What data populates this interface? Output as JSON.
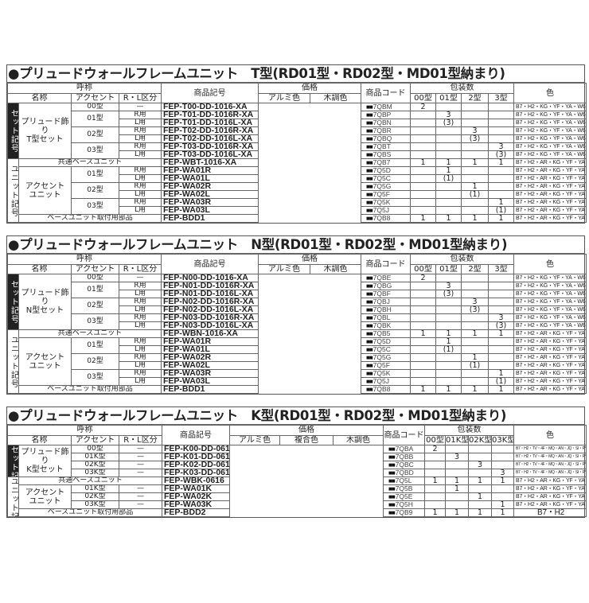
{
  "colors": {
    "text": "#222222",
    "set_label_bg": "#222222",
    "border": "#666666"
  },
  "icons": {
    "title_bullet": "black-circle",
    "code_prefix": "black-squares"
  },
  "tables": {
    "t": {
      "title": "●プリュードウォールフレームユニット　T型(RD01型・RD02型・MD01型納まり)",
      "header": {
        "yobi": "呼称",
        "name": "名称",
        "accent": "アクセント",
        "rl": "R・L区分",
        "product_no": "商品記号",
        "price": "価格",
        "price_cols": [
          "アルミ色",
          "木調色"
        ],
        "code": "商品コード",
        "pack": "包装数",
        "pack_cols": [
          "00型",
          "01型",
          "2型",
          "3型"
        ],
        "color": "色"
      },
      "set_label": "セット記号",
      "unit_label": "ユニット記号",
      "set_name": "プリュード飾り\nT型セット",
      "common_base": "共通ベースユニット",
      "accent_unit": "アクセント\nユニット",
      "base_parts": "ベースユニット取付用部品",
      "code_prefix": "■■",
      "rows": [
        {
          "accent": "00型",
          "rl": "—",
          "product_no": "FEP-T00-DD-1016-XA",
          "code": "7QBM",
          "pack": [
            "2",
            "",
            "",
            ""
          ],
          "color": "B7・H2・KG・YF・YA・W6"
        },
        {
          "accent": "01型",
          "rl": "R用",
          "product_no": "FEP-T01-DD-1016R-XA",
          "code": "7QBP",
          "pack": [
            "",
            "3",
            "",
            ""
          ],
          "color": "B7・H2・KG・YF・YA・W6"
        },
        {
          "rl": "L用",
          "product_no": "FEP-T01-DD-1016L-XA",
          "code": "7QBN",
          "pack": [
            "",
            "(3)",
            "",
            ""
          ],
          "color": "B7・H2・KG・YF・YA・W6"
        },
        {
          "accent": "02型",
          "rl": "R用",
          "product_no": "FEP-T02-DD-1016R-XA",
          "code": "7QBR",
          "pack": [
            "",
            "",
            "3",
            ""
          ],
          "color": "B7・H2・KG・YF・YA・W6"
        },
        {
          "rl": "L用",
          "product_no": "FEP-T02-DD-1016L-XA",
          "code": "7QBQ",
          "pack": [
            "",
            "",
            "(3)",
            ""
          ],
          "color": "B7・H2・KG・YF・YA・W6"
        },
        {
          "accent": "03型",
          "rl": "R用",
          "product_no": "FEP-T03-DD-1016R-XA",
          "code": "7QBT",
          "pack": [
            "",
            "",
            "",
            "3"
          ],
          "color": "B7・H2・KG・YF・YA・W6"
        },
        {
          "rl": "L用",
          "product_no": "FEP-T03-DD-1016L-XA",
          "code": "7QBS",
          "pack": [
            "",
            "",
            "",
            "(3)"
          ],
          "color": "B7・H2・KG・YF・YA・W6"
        },
        {
          "product_no": "FEP-WBT-1016-XA",
          "code": "7QB7",
          "pack": [
            "1",
            "1",
            "1",
            "1"
          ],
          "color": "B7・H2・AR・KG・YF・YA・W6"
        },
        {
          "accent": "01型",
          "rl": "R用",
          "product_no": "FEP-WA01R",
          "code": "7Q5D",
          "pack": [
            "",
            "1",
            "",
            ""
          ],
          "color": "B7・H2・AR・KG・YF・YA・W6"
        },
        {
          "rl": "L用",
          "product_no": "FEP-WA01L",
          "code": "7Q5C",
          "pack": [
            "",
            "(1)",
            "",
            ""
          ],
          "color": "B7・H2・AR・KG・YF・YA・W6"
        },
        {
          "accent": "02型",
          "rl": "R用",
          "product_no": "FEP-WA02R",
          "code": "7Q5G",
          "pack": [
            "",
            "",
            "1",
            ""
          ],
          "color": "B7・H2・AR・KG・YF・YA・W6"
        },
        {
          "rl": "L用",
          "product_no": "FEP-WA02L",
          "code": "7Q5F",
          "pack": [
            "",
            "",
            "(1)",
            ""
          ],
          "color": "B7・H2・AR・KG・YF・YA・W6"
        },
        {
          "accent": "03型",
          "rl": "R用",
          "product_no": "FEP-WA03R",
          "code": "7Q5K",
          "pack": [
            "",
            "",
            "",
            "1"
          ],
          "color": "B7・H2・AR・KG・YF・YA・W6"
        },
        {
          "rl": "L用",
          "product_no": "FEP-WA03L",
          "code": "7Q5J",
          "pack": [
            "",
            "",
            "",
            "(1)"
          ],
          "color": "B7・H2・AR・KG・YF・YA・W6"
        },
        {
          "product_no": "FEP-BDD1",
          "code": "7QB8",
          "pack": [
            "1",
            "1",
            "1",
            "1"
          ],
          "color": "B7・H2・AR・KG・YF・YA・W6"
        }
      ]
    },
    "n": {
      "title": "●プリュードウォールフレームユニット　N型(RD01型・RD02型・MD01型納まり)",
      "header": {
        "yobi": "呼称",
        "name": "名称",
        "accent": "アクセント",
        "rl": "R・L区分",
        "product_no": "商品記号",
        "price": "価格",
        "price_cols": [
          "アルミ色",
          "木調色"
        ],
        "code": "商品コード",
        "pack": "包装数",
        "pack_cols": [
          "00型",
          "01型",
          "2型",
          "3型"
        ],
        "color": "色"
      },
      "set_label": "セット記号",
      "unit_label": "ユニット記号",
      "set_name": "プリュード飾り\nN型セット",
      "common_base": "共通ベースユニット",
      "accent_unit": "アクセント\nユニット",
      "base_parts": "ベースユニット取付用部品",
      "code_prefix": "■■",
      "rows": [
        {
          "accent": "00型",
          "rl": "—",
          "product_no": "FEP-N00-DD-1016-XA",
          "code": "7QBE",
          "pack": [
            "2",
            "",
            "",
            ""
          ],
          "color": "B7・H2・KG・YF・YA・W6"
        },
        {
          "accent": "01型",
          "rl": "R用",
          "product_no": "FEP-N01-DD-1016R-XA",
          "code": "7QBG",
          "pack": [
            "",
            "3",
            "",
            ""
          ],
          "color": "B7・H2・KG・YF・YA・W6"
        },
        {
          "rl": "L用",
          "product_no": "FEP-N01-DD-1016L-XA",
          "code": "7QBF",
          "pack": [
            "",
            "(3)",
            "",
            ""
          ],
          "color": "B7・H2・KG・YF・YA・W6"
        },
        {
          "accent": "02型",
          "rl": "R用",
          "product_no": "FEP-N02-DD-1016R-XA",
          "code": "7QBJ",
          "pack": [
            "",
            "",
            "3",
            ""
          ],
          "color": "B7・H2・KG・YF・YA・W6"
        },
        {
          "rl": "L用",
          "product_no": "FEP-N02-DD-1016L-XA",
          "code": "7QBH",
          "pack": [
            "",
            "",
            "(3)",
            ""
          ],
          "color": "B7・H2・KG・YF・YA・W6"
        },
        {
          "accent": "03型",
          "rl": "R用",
          "product_no": "FEP-N03-DD-1016R-XA",
          "code": "7QBL",
          "pack": [
            "",
            "",
            "",
            "3"
          ],
          "color": "B7・H2・KG・YF・YA・W6"
        },
        {
          "rl": "L用",
          "product_no": "FEP-N03-DD-1016L-XA",
          "code": "7QBK",
          "pack": [
            "",
            "",
            "",
            "(3)"
          ],
          "color": "B7・H2・KG・YF・YA・W6"
        },
        {
          "product_no": "FEP-WBN-1016-XA",
          "code": "7QB5",
          "pack": [
            "1",
            "1",
            "1",
            "1"
          ],
          "color": "B7・H2・AR・KG・YF・YA・W6"
        },
        {
          "accent": "01型",
          "rl": "R用",
          "product_no": "FEP-WA01R",
          "code": "7Q5D",
          "pack": [
            "",
            "1",
            "",
            ""
          ],
          "color": "B7・H2・AR・KG・YF・YA・W6"
        },
        {
          "rl": "L用",
          "product_no": "FEP-WA01L",
          "code": "7Q5C",
          "pack": [
            "",
            "(1)",
            "",
            ""
          ],
          "color": "B7・H2・AR・KG・YF・YA・W6"
        },
        {
          "accent": "02型",
          "rl": "R用",
          "product_no": "FEP-WA02R",
          "code": "7Q5G",
          "pack": [
            "",
            "",
            "1",
            ""
          ],
          "color": "B7・H2・AR・KG・YF・YA・W6"
        },
        {
          "rl": "L用",
          "product_no": "FEP-WA02L",
          "code": "7Q5F",
          "pack": [
            "",
            "",
            "(1)",
            ""
          ],
          "color": "B7・H2・AR・KG・YF・YA・W6"
        },
        {
          "accent": "03型",
          "rl": "R用",
          "product_no": "FEP-WA03R",
          "code": "7Q5K",
          "pack": [
            "",
            "",
            "",
            "1"
          ],
          "color": "B7・H2・AR・KG・YF・YA・W6"
        },
        {
          "rl": "L用",
          "product_no": "FEP-WA03L",
          "code": "7Q5J",
          "pack": [
            "",
            "",
            "",
            "(1)"
          ],
          "color": "B7・H2・AR・KG・YF・YA・W6"
        },
        {
          "product_no": "FEP-BDD1",
          "code": "7QB8",
          "pack": [
            "1",
            "1",
            "1",
            "1"
          ],
          "color": "B7・H2・AR・KG・YF・YA・W6"
        }
      ]
    },
    "k": {
      "title": "●プリュードウォールフレームユニット　K型(RD01型・RD02型・MD01型納まり)",
      "header": {
        "yobi": "呼称",
        "name": "名称",
        "accent": "アクセント",
        "rl": "R・L区分",
        "product_no": "商品記号",
        "price": "価格",
        "price_cols": [
          "アルミ色",
          "複合色",
          "木調色"
        ],
        "code": "商品コード",
        "pack": "包装数",
        "pack_cols": [
          "00型",
          "01K型",
          "02K型",
          "03K型"
        ],
        "color": "色"
      },
      "set_label": "セット記号",
      "unit_label": "ユニット記号",
      "set_name": "プリュード飾り\nK型セット",
      "common_base": "共通ベースユニット",
      "accent_unit": "アクセント\nユニット",
      "base_parts": "ベースユニット取付用部品",
      "code_prefix": "■■",
      "rows": [
        {
          "accent": "00型",
          "rl": "—",
          "product_no": "FEP-K00-DD-0616",
          "code": "7QBA",
          "pack": [
            "2",
            "",
            "",
            ""
          ],
          "color": "B7・H2・TV・4F・MQ・AN・JQ・SI・PY・4D"
        },
        {
          "accent": "01K型",
          "rl": "—",
          "product_no": "FEP-K01-DD-0616",
          "code": "7QBB",
          "pack": [
            "",
            "3",
            "",
            ""
          ],
          "color": "B7・H2・TV・4F・MQ・AN・JQ・SI・PY・4D"
        },
        {
          "accent": "02K型",
          "rl": "—",
          "product_no": "FEP-K02-DD-0616",
          "code": "7QBC",
          "pack": [
            "",
            "",
            "3",
            ""
          ],
          "color": "B7・H2・TV・4F・MQ・AN・JQ・SI・PY・4D"
        },
        {
          "accent": "03K型",
          "rl": "—",
          "product_no": "FEP-K03-DD-0616",
          "code": "7QBD",
          "pack": [
            "",
            "",
            "",
            "3"
          ],
          "color": "B7・H2・TV・4F・MQ・AN・JQ・SI・PY・4D"
        },
        {
          "product_no": "FEP-WBK-0616",
          "code": "7Q5L",
          "pack": [
            "1",
            "1",
            "1",
            "1"
          ],
          "color": "B7・H2・AR・KG・YF・YA・W6"
        },
        {
          "accent": "01K型",
          "rl": "—",
          "product_no": "FEP-WA01K",
          "code": "7Q5B",
          "pack": [
            "",
            "1",
            "",
            ""
          ],
          "color": "B7・H2・AR・KG・YF・YA・W6"
        },
        {
          "accent": "02K型",
          "rl": "—",
          "product_no": "FEP-WA02K",
          "code": "7Q5E",
          "pack": [
            "",
            "",
            "1",
            ""
          ],
          "color": "B7・H2・AR・KG・YF・YA・W6"
        },
        {
          "accent": "03K型",
          "rl": "—",
          "product_no": "FEP-WA03K",
          "code": "7Q5H",
          "pack": [
            "",
            "",
            "",
            "1"
          ],
          "color": "B7・H2・AR・KG・YF・YA・W6"
        },
        {
          "product_no": "FEP-BDD2",
          "code": "7QB9",
          "pack": [
            "1",
            "1",
            "1",
            "1"
          ],
          "color": "B7・H2"
        }
      ]
    }
  }
}
